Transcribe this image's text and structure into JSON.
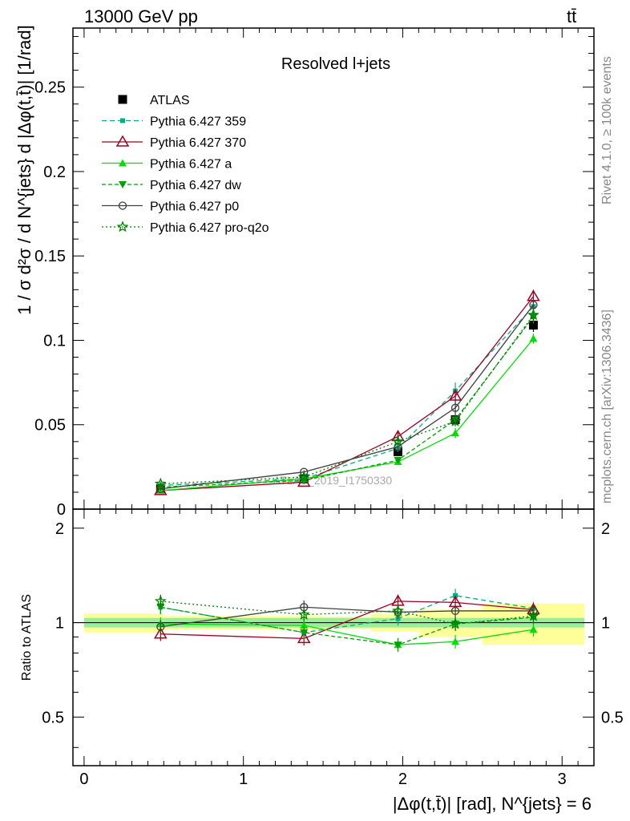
{
  "header": {
    "energy_label": "13000 GeV pp",
    "process_label": "tt̄",
    "rivet_label": "Rivet 4.1.0, ≥ 100k events",
    "mcplots_label": "mcplots.cern.ch [arXiv:1306.3436]",
    "watermark": "ATLAS_2019_I1750330"
  },
  "chart_data": [
    {
      "type": "line",
      "panel": "main",
      "title": "Resolved l+jets",
      "ylabel": "1 / σ d²σ / d N^{jets} d |Δφ(t,t̄)| [1/rad]",
      "xlabel": "|Δφ(t,t̄)| [rad], N^{jets} = 6",
      "xlim": [
        -0.07,
        3.2
      ],
      "ylim": [
        0,
        0.285
      ],
      "xticks": [
        0,
        1,
        2,
        3
      ],
      "yticks": [
        0,
        0.05,
        0.1,
        0.15,
        0.2,
        0.25
      ],
      "ytick_labels": [
        "0",
        "0.05",
        "0.1",
        "0.15",
        "0.2",
        "0.25"
      ],
      "xtick_labels": [
        "0",
        "1",
        "2",
        "3"
      ],
      "x": [
        0.48,
        1.38,
        1.97,
        2.33,
        2.82
      ],
      "series": [
        {
          "name": "ATLAS",
          "values": [
            0.012,
            0.018,
            0.034,
            0.053,
            0.109
          ],
          "errors": [
            0.0008,
            0.001,
            0.002,
            0.003,
            0.004
          ],
          "color": "#000000",
          "marker": "square",
          "dash": "none"
        },
        {
          "name": "Pythia 6.427 359",
          "values": [
            0.014,
            0.018,
            0.036,
            0.07,
            0.12
          ],
          "errors": [
            0.001,
            0.001,
            0.002,
            0.005,
            0.004
          ],
          "color": "#00b080",
          "marker": "smallsquare",
          "dash": "6,4"
        },
        {
          "name": "Pythia 6.427 370",
          "values": [
            0.011,
            0.016,
            0.043,
            0.067,
            0.126
          ],
          "errors": [
            0.001,
            0.001,
            0.003,
            0.004,
            0.004
          ],
          "color": "#a00020",
          "marker": "triangle-open",
          "dash": "none"
        },
        {
          "name": "Pythia 6.427 a",
          "values": [
            0.011,
            0.018,
            0.028,
            0.045,
            0.101
          ],
          "errors": [
            0.001,
            0.001,
            0.002,
            0.003,
            0.003
          ],
          "color": "#00e000",
          "marker": "triangle",
          "dash": "none"
        },
        {
          "name": "Pythia 6.427 dw",
          "values": [
            0.013,
            0.017,
            0.029,
            0.053,
            0.114
          ],
          "errors": [
            0.001,
            0.001,
            0.002,
            0.003,
            0.004
          ],
          "color": "#00a000",
          "marker": "triangle-down",
          "dash": "5,3"
        },
        {
          "name": "Pythia 6.427 p0",
          "values": [
            0.012,
            0.022,
            0.037,
            0.06,
            0.121
          ],
          "errors": [
            0.001,
            0.001,
            0.002,
            0.004,
            0.004
          ],
          "color": "#404040",
          "marker": "circle-open",
          "dash": "none"
        },
        {
          "name": "Pythia 6.427 pro-q2o",
          "values": [
            0.015,
            0.019,
            0.04,
            0.052,
            0.115
          ],
          "errors": [
            0.001,
            0.001,
            0.002,
            0.003,
            0.004
          ],
          "color": "#008000",
          "marker": "star",
          "dash": "2,3"
        }
      ]
    },
    {
      "type": "line",
      "panel": "ratio",
      "ylabel": "Ratio to ATLAS",
      "ylim": [
        0.35,
        2.3
      ],
      "yticks": [
        0.5,
        1,
        2
      ],
      "ytick_labels": [
        "0.5",
        "1",
        "2"
      ],
      "x": [
        0.48,
        1.38,
        1.97,
        2.33,
        2.82
      ],
      "bands": {
        "bin_edges": [
          0,
          0.5,
          1.0,
          1.5,
          1.8,
          2.1,
          2.5,
          3.14
        ],
        "stat_half": [
          0.035,
          0.035,
          0.035,
          0.035,
          0.035,
          0.035,
          0.035
        ],
        "total_half": [
          0.07,
          0.05,
          0.05,
          0.045,
          0.065,
          0.1,
          0.15
        ],
        "colors": {
          "stat": "#99ee99",
          "total": "#ffff99"
        }
      },
      "series": [
        {
          "name": "Pythia 6.427 359",
          "values": [
            1.12,
            0.93,
            1.03,
            1.22,
            1.11
          ]
        },
        {
          "name": "Pythia 6.427 370",
          "values": [
            0.92,
            0.89,
            1.17,
            1.16,
            1.1
          ]
        },
        {
          "name": "Pythia 6.427 a",
          "values": [
            0.99,
            0.98,
            0.85,
            0.87,
            0.95
          ]
        },
        {
          "name": "Pythia 6.427 dw",
          "values": [
            1.12,
            0.93,
            0.85,
            0.99,
            1.04
          ]
        },
        {
          "name": "Pythia 6.427 p0",
          "values": [
            0.97,
            1.12,
            1.08,
            1.09,
            1.09
          ]
        },
        {
          "name": "Pythia 6.427 pro-q2o",
          "values": [
            1.17,
            1.06,
            1.09,
            0.99,
            1.05
          ]
        }
      ]
    }
  ]
}
